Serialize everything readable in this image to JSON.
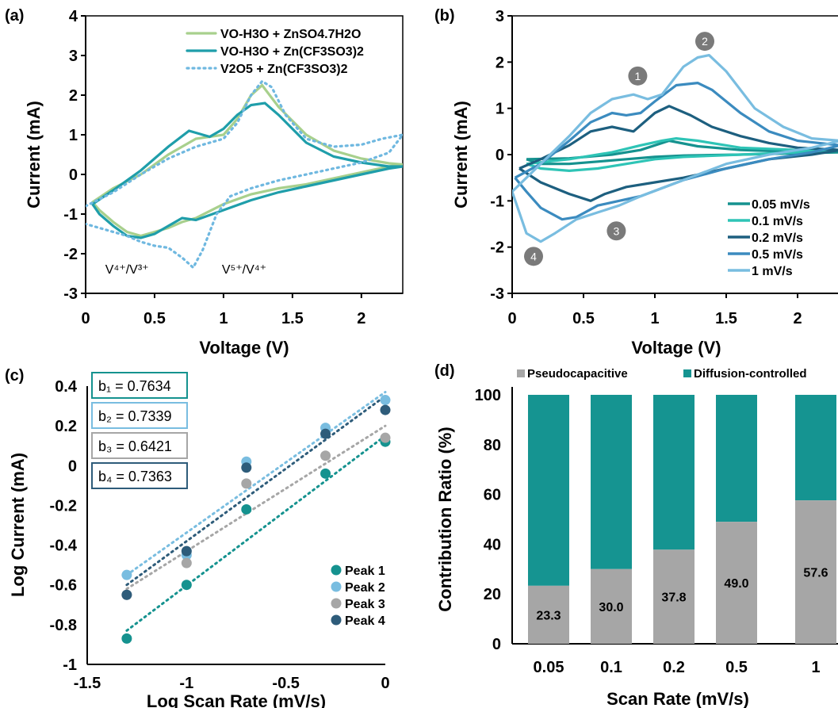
{
  "chart_data": [
    {
      "panel": "(a)",
      "type": "line",
      "xlabel": "Voltage (V)",
      "ylabel": "Current (mA)",
      "xlim": [
        0,
        2.3
      ],
      "ylim": [
        -3,
        4
      ],
      "xticks": [
        "0",
        "0.5",
        "1",
        "1.5",
        "2"
      ],
      "yticks": [
        "-3",
        "-2",
        "-1",
        "0",
        "1",
        "2",
        "3",
        "4"
      ],
      "legend_position": "top-right",
      "annotations": [
        {
          "text": "V⁴⁺/V³⁺",
          "x": 0.3,
          "y": -2.3
        },
        {
          "text": "V⁵⁺/V⁴⁺",
          "x": 1.15,
          "y": -2.3
        }
      ],
      "series": [
        {
          "name": "VO-H3O + ZnSO4.7H2O",
          "color": "#a8d08d",
          "style": "solid",
          "x": [
            0.05,
            0.2,
            0.4,
            0.6,
            0.8,
            1.0,
            1.1,
            1.2,
            1.28,
            1.4,
            1.6,
            1.8,
            2.0,
            2.2,
            2.3,
            2.2,
            2.0,
            1.8,
            1.6,
            1.4,
            1.2,
            1.0,
            0.8,
            0.7,
            0.6,
            0.5,
            0.4,
            0.3,
            0.2,
            0.1,
            0.05
          ],
          "y": [
            -0.7,
            -0.35,
            0.0,
            0.5,
            0.9,
            1.0,
            1.4,
            2.0,
            2.25,
            1.7,
            1.0,
            0.6,
            0.4,
            0.28,
            0.25,
            0.2,
            0.05,
            -0.1,
            -0.25,
            -0.35,
            -0.5,
            -0.75,
            -1.1,
            -1.2,
            -1.35,
            -1.45,
            -1.55,
            -1.45,
            -1.2,
            -0.9,
            -0.7
          ]
        },
        {
          "name": "VO-H3O + Zn(CF3SO3)2",
          "color": "#1f9eaa",
          "style": "solid",
          "x": [
            0.05,
            0.2,
            0.4,
            0.6,
            0.75,
            0.9,
            1.0,
            1.1,
            1.2,
            1.3,
            1.4,
            1.6,
            1.8,
            2.0,
            2.2,
            2.3,
            2.2,
            2.0,
            1.8,
            1.6,
            1.4,
            1.2,
            1.0,
            0.8,
            0.7,
            0.6,
            0.5,
            0.4,
            0.3,
            0.2,
            0.1,
            0.05
          ],
          "y": [
            -0.75,
            -0.4,
            0.1,
            0.7,
            1.1,
            0.95,
            1.15,
            1.5,
            1.75,
            1.8,
            1.5,
            0.8,
            0.45,
            0.3,
            0.2,
            0.2,
            0.15,
            0.0,
            -0.15,
            -0.3,
            -0.45,
            -0.65,
            -0.9,
            -1.15,
            -1.1,
            -1.3,
            -1.5,
            -1.6,
            -1.55,
            -1.3,
            -1.0,
            -0.75
          ]
        },
        {
          "name": "V2O5 + Zn(CF3SO3)2",
          "color": "#6fb8e0",
          "style": "dotted",
          "x": [
            0.0,
            0.2,
            0.4,
            0.6,
            0.8,
            1.0,
            1.1,
            1.2,
            1.28,
            1.35,
            1.45,
            1.6,
            1.8,
            2.0,
            2.15,
            2.3,
            2.2,
            2.0,
            1.8,
            1.6,
            1.4,
            1.2,
            1.05,
            0.95,
            0.85,
            0.78,
            0.7,
            0.6,
            0.5,
            0.4,
            0.3,
            0.2,
            0.1,
            0.0
          ],
          "y": [
            -0.8,
            -0.45,
            0.0,
            0.4,
            0.7,
            0.9,
            1.3,
            2.0,
            2.35,
            2.2,
            1.5,
            0.9,
            0.7,
            0.75,
            0.9,
            1.0,
            0.55,
            0.3,
            0.15,
            0.0,
            -0.15,
            -0.35,
            -0.55,
            -1.0,
            -1.9,
            -2.35,
            -2.1,
            -1.85,
            -1.8,
            -1.7,
            -1.55,
            -1.45,
            -1.35,
            -1.25
          ]
        }
      ]
    },
    {
      "panel": "(b)",
      "type": "line",
      "xlabel": "Voltage (V)",
      "ylabel": "Current (mA)",
      "xlim": [
        0,
        2.3
      ],
      "ylim": [
        -3,
        3
      ],
      "xticks": [
        "0",
        "0.5",
        "1",
        "1.5",
        "2"
      ],
      "yticks": [
        "-3",
        "-2",
        "-1",
        "0",
        "1",
        "2",
        "3"
      ],
      "legend_position": "bottom-right",
      "peak_markers": [
        {
          "text": "1",
          "x": 0.88,
          "y": 1.7
        },
        {
          "text": "2",
          "x": 1.35,
          "y": 2.45
        },
        {
          "text": "3",
          "x": 0.73,
          "y": -1.65
        },
        {
          "text": "4",
          "x": 0.15,
          "y": -2.2
        }
      ],
      "series": [
        {
          "name": "0.05 mV/s",
          "color": "#15928f",
          "x": [
            0.1,
            0.4,
            0.7,
            0.9,
            1.0,
            1.1,
            1.3,
            1.6,
            2.0,
            2.3,
            2.0,
            1.6,
            1.2,
            1.0,
            0.8,
            0.6,
            0.4,
            0.2,
            0.1
          ],
          "y": [
            -0.1,
            -0.08,
            0.0,
            0.1,
            0.2,
            0.3,
            0.18,
            0.1,
            0.06,
            0.05,
            0.03,
            0.0,
            -0.02,
            -0.05,
            -0.1,
            -0.15,
            -0.2,
            -0.2,
            -0.1
          ]
        },
        {
          "name": "0.1 mV/s",
          "color": "#2ec4b6",
          "x": [
            0.1,
            0.4,
            0.7,
            0.9,
            1.05,
            1.15,
            1.3,
            1.6,
            2.0,
            2.3,
            2.0,
            1.6,
            1.2,
            1.0,
            0.8,
            0.6,
            0.4,
            0.2,
            0.1
          ],
          "y": [
            -0.2,
            -0.1,
            0.05,
            0.2,
            0.3,
            0.35,
            0.3,
            0.15,
            0.1,
            0.1,
            0.05,
            0.0,
            -0.05,
            -0.1,
            -0.2,
            -0.3,
            -0.35,
            -0.3,
            -0.2
          ]
        },
        {
          "name": "0.2 mV/s",
          "color": "#1d5f7f",
          "x": [
            0.05,
            0.2,
            0.4,
            0.55,
            0.7,
            0.85,
            1.0,
            1.1,
            1.25,
            1.4,
            1.6,
            1.8,
            2.0,
            2.3,
            2.1,
            1.8,
            1.5,
            1.2,
            1.0,
            0.8,
            0.65,
            0.55,
            0.4,
            0.2,
            0.05
          ],
          "y": [
            -0.3,
            -0.1,
            0.2,
            0.5,
            0.6,
            0.5,
            0.9,
            1.05,
            0.85,
            0.6,
            0.4,
            0.25,
            0.15,
            0.1,
            0.0,
            -0.1,
            -0.3,
            -0.5,
            -0.6,
            -0.7,
            -0.85,
            -1.0,
            -0.85,
            -0.6,
            -0.3
          ]
        },
        {
          "name": "0.5 mV/s",
          "color": "#3b8bbf",
          "x": [
            0.02,
            0.2,
            0.4,
            0.55,
            0.7,
            0.8,
            0.9,
            1.0,
            1.15,
            1.3,
            1.4,
            1.6,
            1.8,
            2.0,
            2.3,
            2.1,
            1.8,
            1.5,
            1.2,
            0.9,
            0.75,
            0.6,
            0.45,
            0.35,
            0.2,
            0.1,
            0.02
          ],
          "y": [
            -0.5,
            -0.2,
            0.3,
            0.7,
            0.9,
            0.85,
            0.9,
            1.15,
            1.5,
            1.55,
            1.4,
            0.9,
            0.5,
            0.3,
            0.2,
            0.05,
            -0.1,
            -0.3,
            -0.55,
            -0.9,
            -1.0,
            -1.1,
            -1.35,
            -1.4,
            -1.15,
            -0.8,
            -0.5
          ]
        },
        {
          "name": "1 mV/s",
          "color": "#79bde0",
          "x": [
            0.0,
            0.2,
            0.4,
            0.55,
            0.7,
            0.85,
            0.95,
            1.05,
            1.2,
            1.3,
            1.38,
            1.5,
            1.7,
            1.9,
            2.1,
            2.3,
            2.1,
            1.8,
            1.5,
            1.2,
            0.9,
            0.75,
            0.6,
            0.45,
            0.3,
            0.2,
            0.1,
            0.0
          ],
          "y": [
            -0.8,
            -0.2,
            0.4,
            0.9,
            1.2,
            1.3,
            1.2,
            1.3,
            1.9,
            2.1,
            2.15,
            1.8,
            1.0,
            0.6,
            0.35,
            0.3,
            0.15,
            0.0,
            -0.2,
            -0.55,
            -0.9,
            -1.1,
            -1.25,
            -1.4,
            -1.7,
            -1.88,
            -1.7,
            -0.8
          ]
        }
      ]
    },
    {
      "panel": "(c)",
      "type": "scatter",
      "xlabel": "Log Scan Rate (mV/s)",
      "ylabel": "Log Current (mA)",
      "xlim": [
        -1.5,
        0
      ],
      "ylim": [
        -1,
        0.4
      ],
      "xticks": [
        "-1.5",
        "-1",
        "-0.5",
        "0"
      ],
      "yticks": [
        "-1",
        "-0.8",
        "-0.6",
        "-0.4",
        "-0.2",
        "0",
        "0.2",
        "0.4"
      ],
      "legend_position": "bottom-right",
      "x": [
        -1.301,
        -1.0,
        -0.699,
        -0.301,
        0.0
      ],
      "fit_boxes": [
        {
          "label": "b₁ = 0.7634",
          "color": "#15928f"
        },
        {
          "label": "b₂ = 0.7339",
          "color": "#79bde0"
        },
        {
          "label": "b₃ = 0.6421",
          "color": "#a6a6a6"
        },
        {
          "label": "b₄ = 0.7363",
          "color": "#2e5c7a"
        }
      ],
      "series": [
        {
          "name": "Peak 1",
          "color": "#15928f",
          "values": [
            -0.87,
            -0.6,
            -0.22,
            -0.04,
            0.12
          ],
          "fit": [
            -0.83,
            0.15
          ]
        },
        {
          "name": "Peak 2",
          "color": "#79bde0",
          "values": [
            -0.55,
            -0.45,
            0.02,
            0.19,
            0.33
          ],
          "fit": [
            -0.55,
            0.37
          ]
        },
        {
          "name": "Peak 3",
          "color": "#a6a6a6",
          "values": [
            -0.65,
            -0.49,
            -0.09,
            0.05,
            0.14
          ],
          "fit": [
            -0.62,
            0.2
          ]
        },
        {
          "name": "Peak 4",
          "color": "#2e5c7a",
          "values": [
            -0.65,
            -0.43,
            -0.01,
            0.16,
            0.28
          ],
          "fit": [
            -0.6,
            0.35
          ]
        }
      ]
    },
    {
      "panel": "(d)",
      "type": "bar",
      "stacked": true,
      "xlabel": "Scan Rate (mV/s)",
      "ylabel": "Contribution Ratio (%)",
      "ylim": [
        0,
        100
      ],
      "yticks": [
        "0",
        "20",
        "40",
        "60",
        "80",
        "100"
      ],
      "legend_position": "top",
      "categories": [
        "0.05",
        "0.1",
        "0.2",
        "0.5",
        "1"
      ],
      "series": [
        {
          "name": "Pseudocapacitive",
          "color": "#a6a6a6",
          "values": [
            23.3,
            30.0,
            37.8,
            49.0,
            57.6
          ]
        },
        {
          "name": "Diffusion-controlled",
          "color": "#159491",
          "values": [
            76.7,
            70.0,
            62.2,
            51.0,
            42.4
          ]
        }
      ],
      "data_labels": [
        "23.3",
        "30.0",
        "37.8",
        "49.0",
        "57.6"
      ]
    }
  ]
}
